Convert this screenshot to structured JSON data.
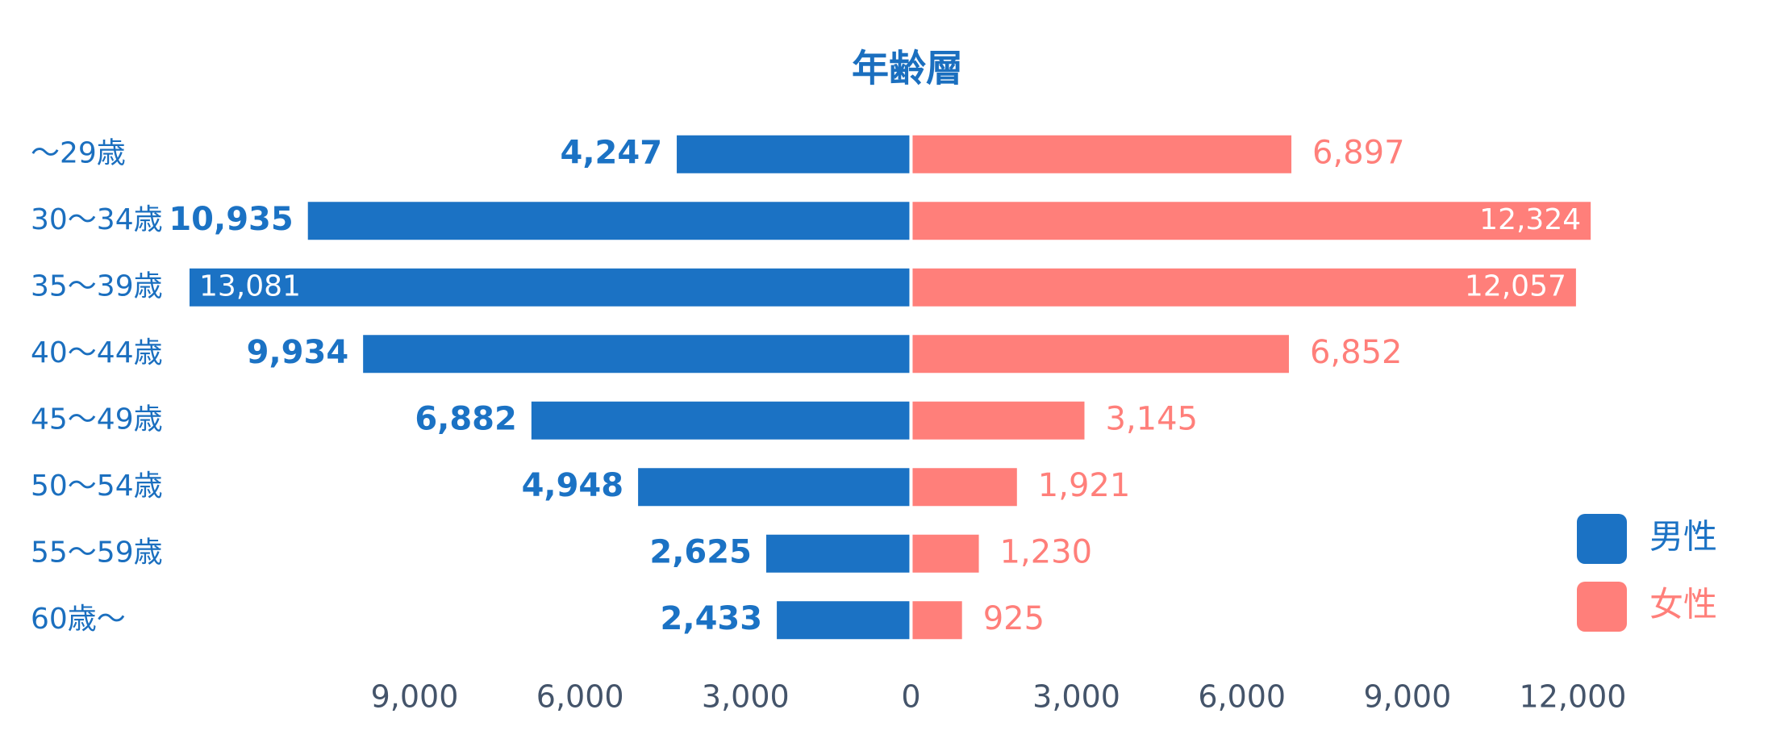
{
  "chart_data": {
    "type": "pyramid",
    "title": "年齢層",
    "categories": [
      "～29歳",
      "30～34歳",
      "35～39歳",
      "40～44歳",
      "45～49歳",
      "50～54歳",
      "55～59歳",
      "60歳～"
    ],
    "series": [
      {
        "name": "男性",
        "color": "#1b72c4",
        "side": "left",
        "values": [
          4247,
          10935,
          13081,
          9934,
          6882,
          4948,
          2625,
          2433
        ],
        "value_labels": [
          "4,247",
          "10,935",
          "13,081",
          "9,934",
          "6,882",
          "4,948",
          "2,625",
          "2,433"
        ]
      },
      {
        "name": "女性",
        "color": "#ff7f7a",
        "side": "right",
        "values": [
          6897,
          12324,
          12057,
          6852,
          3145,
          1921,
          1230,
          925
        ],
        "value_labels": [
          "6,897",
          "12,324",
          "12,057",
          "6,852",
          "3,145",
          "1,921",
          "1,230",
          "925"
        ]
      }
    ],
    "xlim": [
      -13300,
      12000
    ],
    "xticks": [
      {
        "value": -9000,
        "label": "9,000"
      },
      {
        "value": -6000,
        "label": "6,000"
      },
      {
        "value": -3000,
        "label": "3,000"
      },
      0,
      {
        "value": 3000,
        "label": "3,000"
      },
      {
        "value": 6000,
        "label": "6,000"
      },
      {
        "value": 9000,
        "label": "9,000"
      },
      {
        "value": 12000,
        "label": "12,000"
      }
    ],
    "legend": "right"
  }
}
